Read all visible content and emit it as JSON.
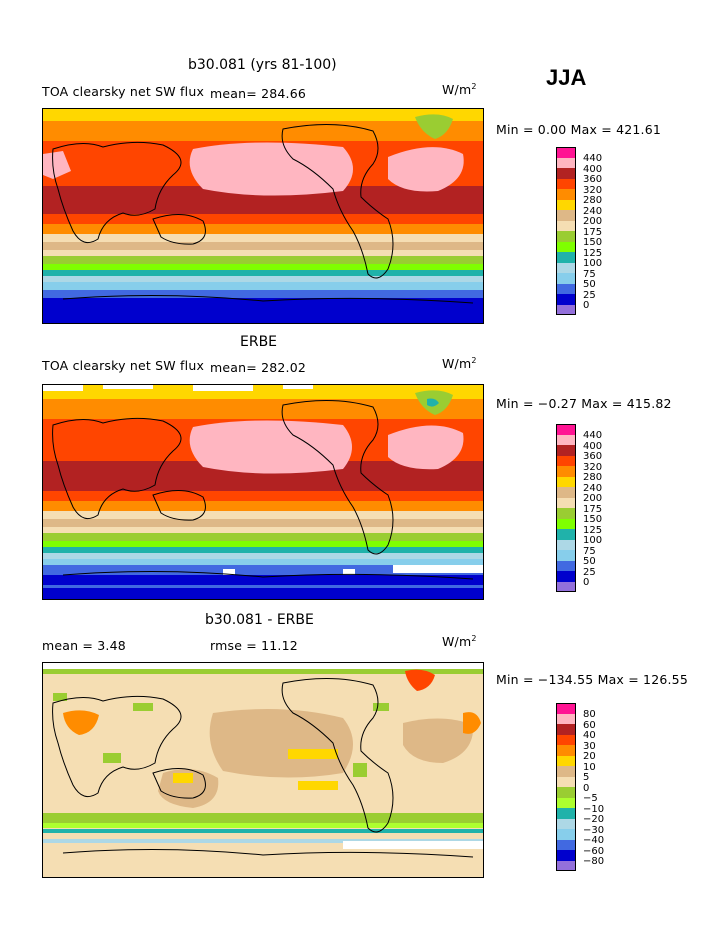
{
  "season": "JJA",
  "panels": [
    {
      "title": "b30.081 (yrs 81-100)",
      "left_label": "TOA clearsky net SW flux",
      "mean_label": "mean= 284.66",
      "units": "W/m",
      "units_sup": "2",
      "minmax": "Min =    0.00 Max = 421.61",
      "levels": [
        "440",
        "400",
        "360",
        "320",
        "280",
        "240",
        "200",
        "175",
        "150",
        "125",
        "100",
        "75",
        "50",
        "25",
        "0"
      ]
    },
    {
      "title": "ERBE",
      "left_label": "TOA clearsky net SW flux",
      "mean_label": "mean= 282.02",
      "units": "W/m",
      "units_sup": "2",
      "minmax": "Min =  −0.27 Max = 415.82",
      "levels": [
        "440",
        "400",
        "360",
        "320",
        "280",
        "240",
        "200",
        "175",
        "150",
        "125",
        "100",
        "75",
        "50",
        "25",
        "0"
      ]
    },
    {
      "title": "b30.081 - ERBE",
      "left_label": "mean =    3.48",
      "mean_label": "rmse =   11.12",
      "units": "W/m",
      "units_sup": "2",
      "minmax": "Min = −134.55 Max = 126.55",
      "levels": [
        "80",
        "60",
        "40",
        "30",
        "20",
        "10",
        "5",
        "0",
        "−5",
        "−10",
        "−20",
        "−30",
        "−40",
        "−60",
        "−80"
      ]
    }
  ],
  "colors": {
    "abs": [
      "#ff1493",
      "#ffb6c1",
      "#b22222",
      "#ff4500",
      "#ff8c00",
      "#ffd700",
      "#deb887",
      "#f5deb3",
      "#9acd32",
      "#7fff00",
      "#20b2aa",
      "#add8e6",
      "#87ceeb",
      "#4169e1",
      "#0000cd",
      "#9370db"
    ],
    "diff": [
      "#ff1493",
      "#ffb6c1",
      "#b22222",
      "#ff4500",
      "#ff8c00",
      "#ffd700",
      "#deb887",
      "#f5deb3",
      "#9acd32",
      "#adff2f",
      "#20b2aa",
      "#add8e6",
      "#87ceeb",
      "#4169e1",
      "#0000cd",
      "#9370db"
    ]
  },
  "chart_data": [
    {
      "type": "heatmap",
      "title": "b30.081 (yrs 81-100)",
      "field": "TOA clearsky net SW flux",
      "season": "JJA",
      "units": "W/m2",
      "mean": 284.66,
      "min": 0.0,
      "max": 421.61,
      "contour_levels": [
        0,
        25,
        50,
        75,
        100,
        125,
        150,
        175,
        200,
        240,
        280,
        320,
        360,
        400,
        440
      ]
    },
    {
      "type": "heatmap",
      "title": "ERBE",
      "field": "TOA clearsky net SW flux",
      "season": "JJA",
      "units": "W/m2",
      "mean": 282.02,
      "min": -0.27,
      "max": 415.82,
      "contour_levels": [
        0,
        25,
        50,
        75,
        100,
        125,
        150,
        175,
        200,
        240,
        280,
        320,
        360,
        400,
        440
      ]
    },
    {
      "type": "heatmap",
      "title": "b30.081 - ERBE",
      "season": "JJA",
      "units": "W/m2",
      "mean": 3.48,
      "rmse": 11.12,
      "min": -134.55,
      "max": 126.55,
      "contour_levels": [
        -80,
        -60,
        -40,
        -30,
        -20,
        -10,
        -5,
        0,
        5,
        10,
        20,
        30,
        40,
        60,
        80
      ]
    }
  ]
}
